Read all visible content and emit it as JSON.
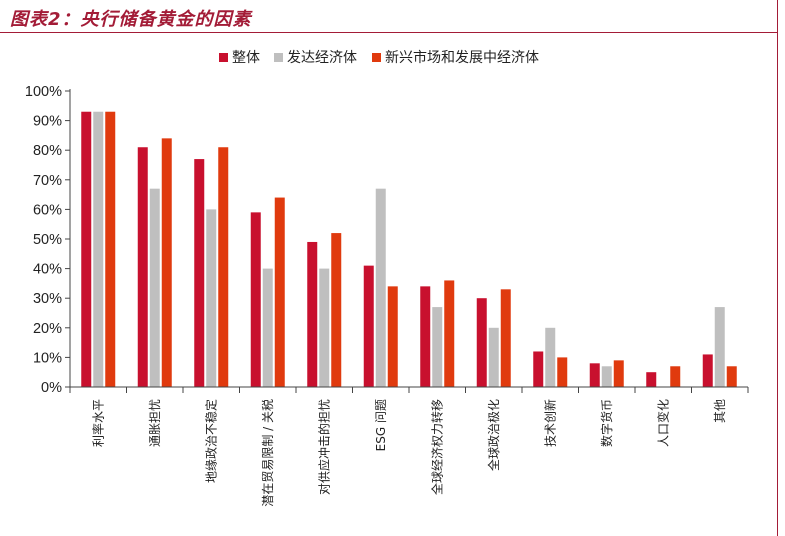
{
  "header": {
    "title": "图表2：央行储备黄金的因素"
  },
  "chart_data": {
    "type": "bar",
    "categories": [
      "利率水平",
      "通胀担忧",
      "地缘政治不稳定",
      "潜在贸易限制 / 关税",
      "对供应冲击的担忧",
      "ESG 问题",
      "全球经济权力转移",
      "全球政治极化",
      "技术创新",
      "数字货币",
      "人口变化",
      "其他"
    ],
    "series": [
      {
        "name": "整体",
        "color": "#c8102e",
        "values": [
          93,
          81,
          77,
          59,
          49,
          41,
          34,
          30,
          12,
          8,
          5,
          11
        ]
      },
      {
        "name": "发达经济体",
        "color": "#bfbfbf",
        "values": [
          93,
          67,
          60,
          40,
          40,
          67,
          27,
          20,
          20,
          7,
          0,
          27
        ]
      },
      {
        "name": "新兴市场和发展中经济体",
        "color": "#e03a0e",
        "values": [
          93,
          84,
          81,
          64,
          52,
          34,
          36,
          33,
          10,
          9,
          7,
          7
        ]
      }
    ],
    "y_ticks": [
      "0%",
      "10%",
      "20%",
      "30%",
      "40%",
      "50%",
      "60%",
      "70%",
      "80%",
      "90%",
      "100%"
    ],
    "ylim": [
      0,
      100
    ],
    "legend_position": "top",
    "grid": false
  }
}
